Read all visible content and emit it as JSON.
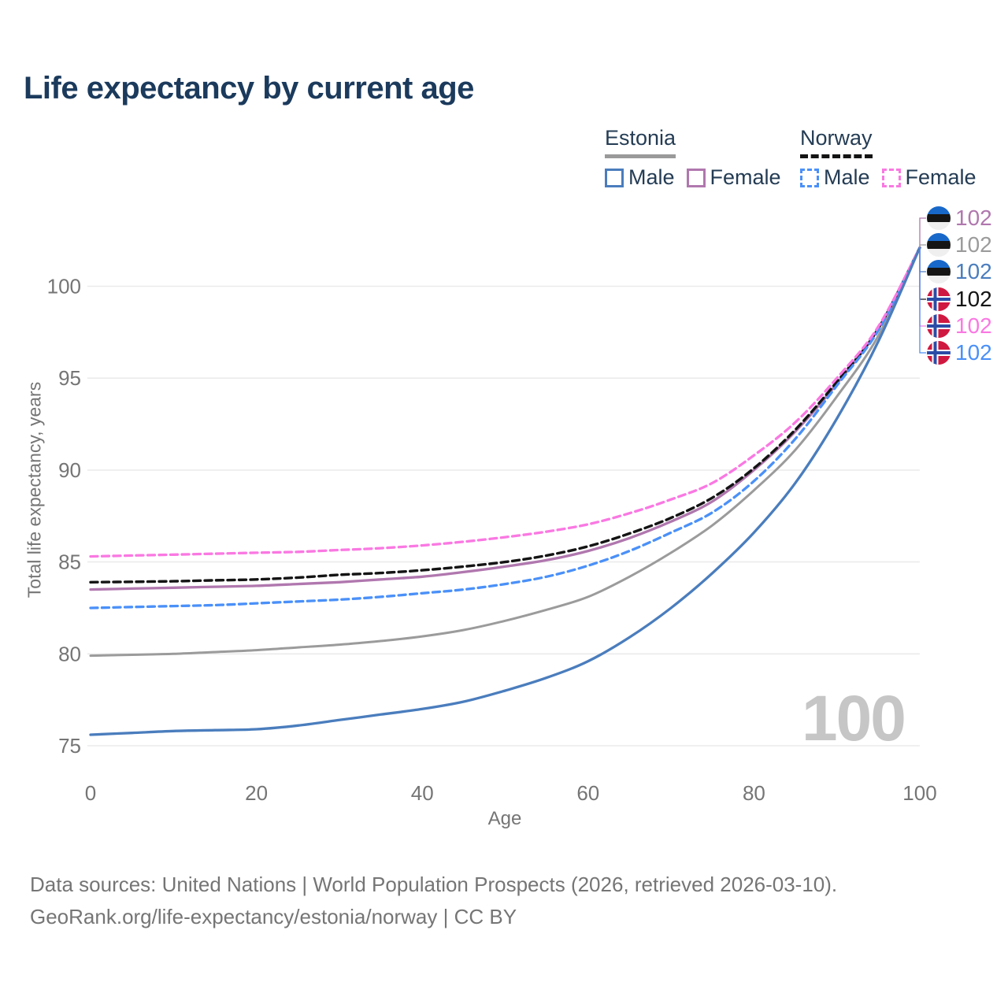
{
  "title": "Life expectancy by current age",
  "legend": {
    "groups": [
      {
        "country": "Estonia",
        "line_style": "solid",
        "underline_color": "#9a9a9a",
        "items": [
          {
            "label": "Male",
            "color": "#4a7dbd",
            "dashed": false
          },
          {
            "label": "Female",
            "color": "#b077ae",
            "dashed": false
          }
        ]
      },
      {
        "country": "Norway",
        "line_style": "dashed",
        "underline_color": "#141414",
        "items": [
          {
            "label": "Male",
            "color": "#4a90f8",
            "dashed": true
          },
          {
            "label": "Female",
            "color": "#fa78e2",
            "dashed": true
          }
        ]
      }
    ]
  },
  "watermark": "100",
  "footer": {
    "line1": "Data sources: United Nations | World Population Prospects (2026, retrieved 2026-03-10).",
    "line2": "GeoRank.org/life-expectancy/estonia/norway | CC BY"
  },
  "chart_data": {
    "type": "line",
    "title": "Life expectancy by current age",
    "xlabel": "Age",
    "ylabel": "Total life expectancy, years",
    "xlim": [
      0,
      100
    ],
    "ylim": [
      74,
      103
    ],
    "xticks": [
      0,
      20,
      40,
      60,
      80,
      100
    ],
    "yticks": [
      75,
      80,
      85,
      90,
      95,
      100
    ],
    "grid": true,
    "legend_position": "top-right",
    "x": [
      0,
      5,
      10,
      15,
      20,
      25,
      30,
      35,
      40,
      45,
      50,
      55,
      60,
      65,
      70,
      75,
      80,
      85,
      90,
      95,
      100
    ],
    "series": [
      {
        "name": "Estonia Total",
        "country": "Estonia",
        "flag": "estonia-flag",
        "color": "#9b9b9b",
        "dashed": false,
        "width": 3.0,
        "end_label": "102",
        "values": [
          79.9,
          79.95,
          80.0,
          80.1,
          80.2,
          80.35,
          80.5,
          80.7,
          80.95,
          81.3,
          81.8,
          82.4,
          83.1,
          84.2,
          85.5,
          87.0,
          88.9,
          91.1,
          94.0,
          97.3,
          102.1
        ]
      },
      {
        "name": "Estonia Female",
        "country": "Estonia",
        "flag": "estonia-flag",
        "color": "#b077ae",
        "dashed": false,
        "width": 3.3,
        "end_label": "102",
        "values": [
          83.5,
          83.55,
          83.6,
          83.65,
          83.7,
          83.8,
          83.9,
          84.05,
          84.2,
          84.45,
          84.75,
          85.1,
          85.6,
          86.3,
          87.2,
          88.3,
          90.0,
          92.1,
          94.7,
          97.7,
          102.1
        ]
      },
      {
        "name": "Norway Total",
        "country": "Norway",
        "flag": "norway-flag",
        "color": "#141414",
        "dashed": true,
        "width": 3.4,
        "end_label": "102",
        "values": [
          83.9,
          83.92,
          83.95,
          84.0,
          84.05,
          84.15,
          84.3,
          84.4,
          84.55,
          84.75,
          85.0,
          85.35,
          85.85,
          86.55,
          87.4,
          88.5,
          90.1,
          92.2,
          94.8,
          97.7,
          102.1
        ]
      },
      {
        "name": "Norway Male",
        "country": "Norway",
        "flag": "norway-flag",
        "color": "#4a90f8",
        "dashed": true,
        "width": 3.3,
        "end_label": "102",
        "values": [
          82.5,
          82.55,
          82.6,
          82.65,
          82.75,
          82.85,
          82.95,
          83.1,
          83.3,
          83.5,
          83.8,
          84.2,
          84.8,
          85.6,
          86.6,
          87.7,
          89.4,
          91.7,
          94.6,
          97.6,
          102.1
        ]
      },
      {
        "name": "Norway Female",
        "country": "Norway",
        "flag": "norway-flag",
        "color": "#fa78e2",
        "dashed": true,
        "width": 3.3,
        "end_label": "102",
        "values": [
          85.3,
          85.35,
          85.4,
          85.45,
          85.5,
          85.55,
          85.65,
          85.75,
          85.9,
          86.1,
          86.35,
          86.65,
          87.05,
          87.65,
          88.4,
          89.3,
          90.8,
          92.6,
          95.0,
          97.8,
          102.1
        ]
      },
      {
        "name": "Estonia Male",
        "country": "Estonia",
        "flag": "estonia-flag",
        "color": "#4a7dbd",
        "dashed": false,
        "width": 3.3,
        "end_label": "102",
        "values": [
          75.6,
          75.7,
          75.8,
          75.85,
          75.9,
          76.1,
          76.4,
          76.7,
          77.0,
          77.4,
          78.0,
          78.7,
          79.6,
          80.9,
          82.5,
          84.4,
          86.6,
          89.3,
          92.8,
          97.0,
          102.1
        ]
      }
    ],
    "end_labels_order": [
      "Estonia Female",
      "Estonia Total",
      "Estonia Male",
      "Norway Total",
      "Norway Female",
      "Norway Male"
    ],
    "flag_colors": {
      "estonia": {
        "blue": "#1868c9",
        "black": "#151515",
        "white": "#efefef"
      },
      "norway": {
        "red": "#d01940",
        "blue": "#2b4ca6",
        "white": "#ffffff"
      }
    }
  }
}
